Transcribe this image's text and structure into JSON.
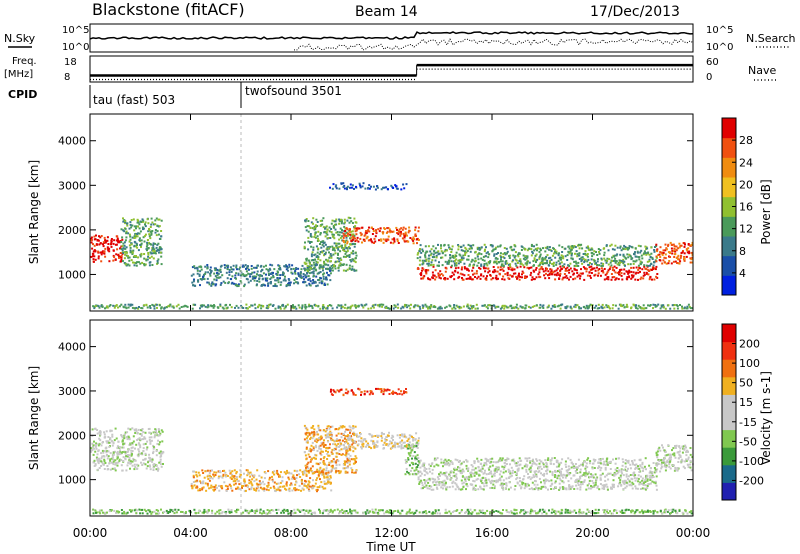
{
  "header": {
    "station": "Blackstone (fitACF)",
    "beam": "Beam 14",
    "date": "17/Dec/2013"
  },
  "top_panels": {
    "nsky_label": "N.Sky",
    "nsearch_label": "N.Search",
    "nsky_ticks": [
      "10^5",
      "10^0"
    ],
    "nsearch_ticks": [
      "10^5",
      "10^0"
    ],
    "freq_label": "Freq.",
    "freq_unit": "[MHz]",
    "freq_ticks": [
      "18",
      "8"
    ],
    "nave_label": "Nave",
    "nave_ticks": [
      "60",
      "0"
    ],
    "cpid_label": "CPID",
    "cpid_segments": [
      {
        "label": "tau (fast) 503",
        "start_hour": 0,
        "end_hour": 6
      },
      {
        "label": "twofsound 3501",
        "start_hour": 6,
        "end_hour": 24
      }
    ],
    "freq_series": [
      {
        "start_hour": 0,
        "end_hour": 13,
        "freq_mhz": 10.5
      },
      {
        "start_hour": 13,
        "end_hour": 24,
        "freq_mhz": 14.5
      }
    ]
  },
  "colors": {
    "power": [
      "#0020e0",
      "#1a4fa8",
      "#3a7a8a",
      "#4a9a5a",
      "#90c030",
      "#f0c020",
      "#f08c10",
      "#f05010",
      "#e00000"
    ],
    "velocity": [
      "#2020b0",
      "#1a6a8a",
      "#3a9a3a",
      "#80c850",
      "#c8c8c8",
      "#c8c8c8",
      "#f0b020",
      "#f07010",
      "#f03010",
      "#e00000"
    ]
  },
  "chart_data": [
    {
      "type": "heatmap",
      "title": "",
      "ylabel": "Slant Range [km]",
      "xlabel": "Time UT",
      "xlim": [
        0,
        24
      ],
      "ylim": [
        180,
        4600
      ],
      "yticks": [
        1000,
        2000,
        3000,
        4000
      ],
      "xticks": [
        "00:00",
        "04:00",
        "08:00",
        "12:00",
        "16:00",
        "20:00",
        "00:00"
      ],
      "colorbar": {
        "label": "Power [dB]",
        "ticks": [
          "28",
          "24",
          "20",
          "16",
          "12",
          "8",
          "4"
        ],
        "range": [
          0,
          32
        ]
      },
      "features": [
        {
          "start_hour": 0.0,
          "end_hour": 1.2,
          "center_km": 1600,
          "width_km": 500,
          "level": 8
        },
        {
          "start_hour": 1.2,
          "end_hour": 2.8,
          "center_km": 1750,
          "width_km": 900,
          "level": 3
        },
        {
          "start_hour": 4.0,
          "end_hour": 9.5,
          "center_km": 1000,
          "width_km": 400,
          "level": 2
        },
        {
          "start_hour": 8.5,
          "end_hour": 10.5,
          "center_km": 1700,
          "width_km": 1000,
          "level": 3
        },
        {
          "start_hour": 9.5,
          "end_hour": 12.5,
          "center_km": 3000,
          "width_km": 120,
          "level": 1
        },
        {
          "start_hour": 10.0,
          "end_hour": 13.0,
          "center_km": 1900,
          "width_km": 300,
          "level": 7
        },
        {
          "start_hour": 13.0,
          "end_hour": 22.5,
          "center_km": 1050,
          "width_km": 250,
          "level": 8
        },
        {
          "start_hour": 13.0,
          "end_hour": 22.5,
          "center_km": 1450,
          "width_km": 400,
          "level": 3
        },
        {
          "start_hour": 22.5,
          "end_hour": 24.0,
          "center_km": 1500,
          "width_km": 400,
          "level": 7
        },
        {
          "start_hour": 0.0,
          "end_hour": 24.0,
          "center_km": 300,
          "width_km": 80,
          "level": 3
        }
      ]
    },
    {
      "type": "heatmap",
      "title": "",
      "ylabel": "Slant Range [km]",
      "xlabel": "Time UT",
      "xlim": [
        0,
        24
      ],
      "ylim": [
        180,
        4600
      ],
      "yticks": [
        1000,
        2000,
        3000,
        4000
      ],
      "xticks": [
        "00:00",
        "04:00",
        "08:00",
        "12:00",
        "16:00",
        "20:00",
        "00:00"
      ],
      "colorbar": {
        "label": "Velocity [m s-1]",
        "ticks": [
          "200",
          "100",
          "50",
          "15",
          "-15",
          "-50",
          "-100",
          "-200"
        ],
        "range": [
          -250,
          250
        ]
      },
      "features": [
        {
          "start_hour": 0.0,
          "end_hour": 2.8,
          "center_km": 1700,
          "width_km": 800,
          "level": 4
        },
        {
          "start_hour": 4.0,
          "end_hour": 9.5,
          "center_km": 1000,
          "width_km": 400,
          "level": 6
        },
        {
          "start_hour": 8.5,
          "end_hour": 10.5,
          "center_km": 1700,
          "width_km": 900,
          "level": 6
        },
        {
          "start_hour": 9.5,
          "end_hour": 12.5,
          "center_km": 3000,
          "width_km": 120,
          "level": 8
        },
        {
          "start_hour": 10.0,
          "end_hour": 13.0,
          "center_km": 1900,
          "width_km": 300,
          "level": 5
        },
        {
          "start_hour": 12.5,
          "end_hour": 13.0,
          "center_km": 1500,
          "width_km": 600,
          "level": 3
        },
        {
          "start_hour": 13.0,
          "end_hour": 22.5,
          "center_km": 1150,
          "width_km": 600,
          "level": 4
        },
        {
          "start_hour": 22.5,
          "end_hour": 24.0,
          "center_km": 1500,
          "width_km": 500,
          "level": 4
        },
        {
          "start_hour": 0.0,
          "end_hour": 24.0,
          "center_km": 300,
          "width_km": 80,
          "level": 3
        }
      ]
    }
  ]
}
